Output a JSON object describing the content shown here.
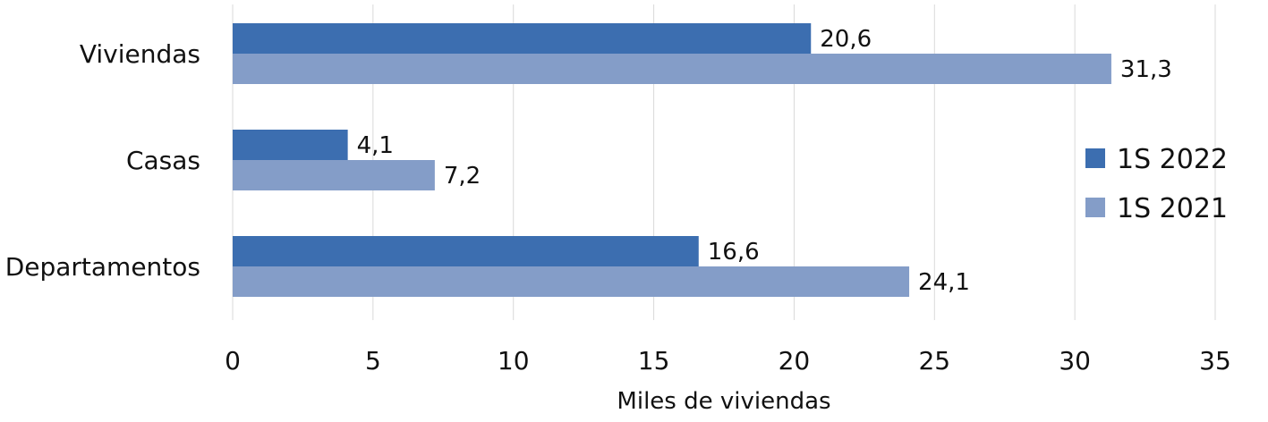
{
  "chart_data": {
    "type": "bar",
    "orientation": "horizontal",
    "categories": [
      "Viviendas",
      "Casas",
      "Departamentos"
    ],
    "series": [
      {
        "name": "1S 2022",
        "values": [
          20.6,
          4.1,
          16.6
        ],
        "labels": [
          "20,6",
          "4,1",
          "16,6"
        ],
        "color": "#3c6eb0"
      },
      {
        "name": "1S 2021",
        "values": [
          31.3,
          7.2,
          24.1
        ],
        "labels": [
          "31,3",
          "7,2",
          "24,1"
        ],
        "color": "#849dc8"
      }
    ],
    "xlabel": "Miles de viviendas",
    "ylabel": "",
    "xlim": [
      0,
      35
    ],
    "ticks": [
      0,
      5,
      10,
      15,
      20,
      25,
      30,
      35
    ],
    "grid": true,
    "legend_position": "right"
  }
}
